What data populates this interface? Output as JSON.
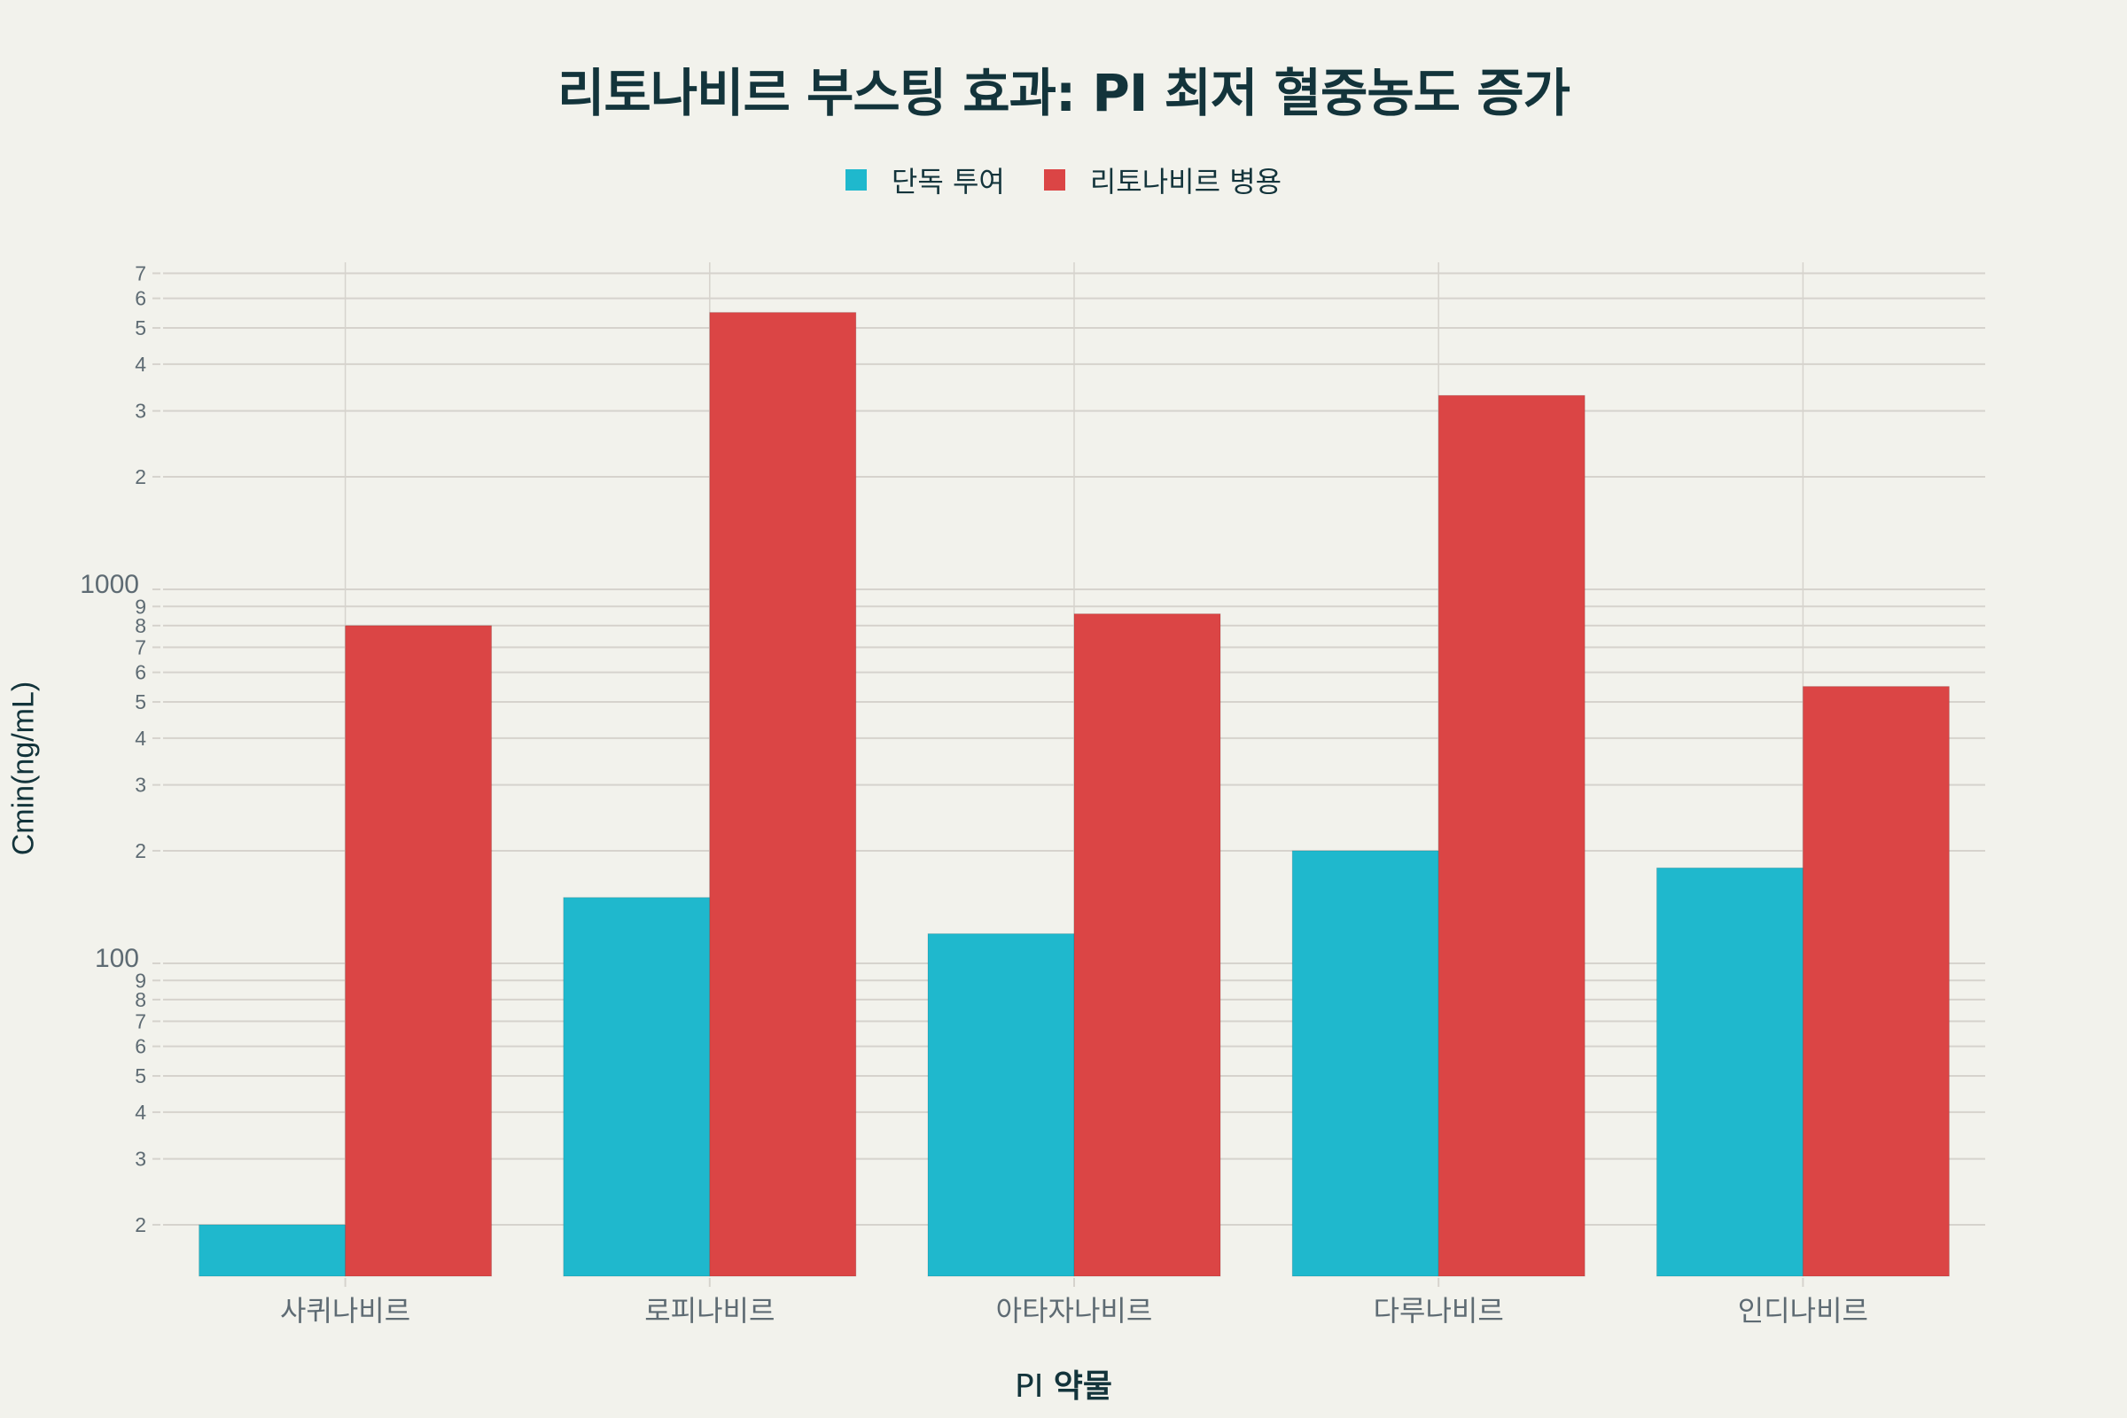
{
  "title": "리토나비르 부스팅 효과: PI 최저 혈중농도 증가",
  "legend": {
    "items": [
      {
        "label": "단독 투여",
        "color": "#1FB8CD"
      },
      {
        "label": "리토나비르 병용",
        "color": "#DB4545"
      }
    ]
  },
  "axes": {
    "x_title_regular": "PI",
    "x_title_bold": "약물",
    "y_title": "Cmin(ng/mL)"
  },
  "colors": {
    "background": "#F2F2EC",
    "title": "#13343B",
    "tick_text": "#5E6B73",
    "grid": "#D6D3CD",
    "series_alone": "#1FB8CD",
    "series_boosted": "#DB4545"
  },
  "chart_data": {
    "type": "bar",
    "title": "리토나비르 부스팅 효과: PI 최저 혈중농도 증가",
    "xlabel": "PI 약물",
    "ylabel": "Cmin(ng/mL)",
    "yscale": "log",
    "ylim": [
      14.6,
      7480
    ],
    "grid": true,
    "legend_position": "top-center",
    "categories": [
      "사퀴나비르",
      "로피나비르",
      "아타자나비르",
      "다루나비르",
      "인디나비르"
    ],
    "series": [
      {
        "name": "단독 투여",
        "color": "#1FB8CD",
        "values": [
          20,
          150,
          120,
          200,
          180
        ]
      },
      {
        "name": "리토나비르 병용",
        "color": "#DB4545",
        "values": [
          800,
          5500,
          860,
          3300,
          550
        ]
      }
    ],
    "y_ticks": [
      {
        "value": 20,
        "label": "2"
      },
      {
        "value": 30,
        "label": "3"
      },
      {
        "value": 40,
        "label": "4"
      },
      {
        "value": 50,
        "label": "5"
      },
      {
        "value": 60,
        "label": "6"
      },
      {
        "value": 70,
        "label": "7"
      },
      {
        "value": 80,
        "label": "8"
      },
      {
        "value": 90,
        "label": "9"
      },
      {
        "value": 100,
        "label": "100",
        "major": true
      },
      {
        "value": 200,
        "label": "2"
      },
      {
        "value": 300,
        "label": "3"
      },
      {
        "value": 400,
        "label": "4"
      },
      {
        "value": 500,
        "label": "5"
      },
      {
        "value": 600,
        "label": "6"
      },
      {
        "value": 700,
        "label": "7"
      },
      {
        "value": 800,
        "label": "8"
      },
      {
        "value": 900,
        "label": "9"
      },
      {
        "value": 1000,
        "label": "1000",
        "major": true
      },
      {
        "value": 2000,
        "label": "2"
      },
      {
        "value": 3000,
        "label": "3"
      },
      {
        "value": 4000,
        "label": "4"
      },
      {
        "value": 5000,
        "label": "5"
      },
      {
        "value": 6000,
        "label": "6"
      },
      {
        "value": 7000,
        "label": "7"
      }
    ]
  }
}
